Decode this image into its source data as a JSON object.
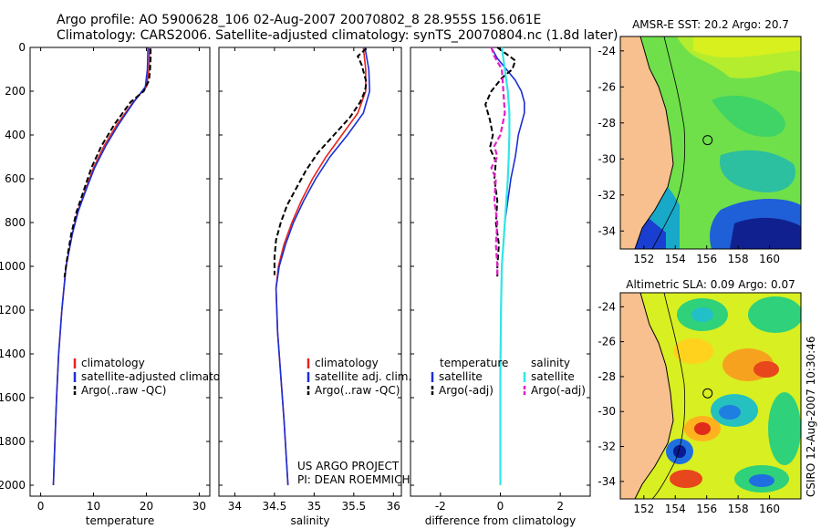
{
  "header": {
    "line1": "Argo profile: AO 5900628_106 02-Aug-2007 20070802_8 28.955S 156.061E",
    "line2": "Climatology: CARS2006. Satellite-adjusted climatology: synTS_20070804.nc (1.8d later)"
  },
  "credits": {
    "project": "US ARGO PROJECT",
    "pi": "PI: DEAN ROEMMICH",
    "stamp": "CSIRO 12-Aug-2007 10:30:46"
  },
  "colors": {
    "climatology": "#e8231c",
    "satellite": "#1b2fd6",
    "argo": "#000000",
    "sal_satellite": "#33e5e5",
    "sal_argo": "#e01fc9",
    "land": "#f7c08e"
  },
  "chart_data": [
    {
      "id": "temperature",
      "type": "line",
      "xlabel": "temperature",
      "ylabel": "",
      "xlim": [
        -2,
        32
      ],
      "ylim": [
        2050,
        0
      ],
      "xticks": [
        "0",
        "10",
        "20",
        "30"
      ],
      "xtick_values": [
        0,
        10,
        20,
        30
      ],
      "yticks": [
        "0",
        "200",
        "400",
        "600",
        "800",
        "1000",
        "1200",
        "1400",
        "1600",
        "1800",
        "2000"
      ],
      "ytick_values": [
        0,
        200,
        400,
        600,
        800,
        1000,
        1200,
        1400,
        1600,
        1800,
        2000
      ],
      "legend": [
        "climatology",
        "satellite-adjusted climatology",
        "Argo(..raw -QC)"
      ],
      "series": [
        {
          "name": "climatology",
          "depth": [
            0,
            100,
            180,
            250,
            350,
            450,
            550,
            650,
            750,
            850,
            1000,
            1200,
            1400,
            1600,
            1800,
            2000
          ],
          "values": [
            20.6,
            20.5,
            20.0,
            17.5,
            14.5,
            12.0,
            10.0,
            8.5,
            7.0,
            6.0,
            4.8,
            4.0,
            3.4,
            3.0,
            2.7,
            2.4
          ]
        },
        {
          "name": "satellite-adjusted climatology",
          "depth": [
            0,
            100,
            180,
            250,
            350,
            450,
            550,
            650,
            750,
            850,
            1000,
            1200,
            1400,
            1600,
            1800,
            2000
          ],
          "values": [
            20.3,
            20.2,
            19.8,
            17.6,
            14.8,
            12.3,
            10.2,
            8.6,
            7.1,
            6.0,
            4.8,
            4.0,
            3.4,
            3.0,
            2.7,
            2.4
          ]
        },
        {
          "name": "Argo(..raw -QC)",
          "depth": [
            5,
            50,
            100,
            150,
            200,
            250,
            350,
            450,
            550,
            650,
            750,
            850,
            950,
            1050
          ],
          "values": [
            20.8,
            20.8,
            20.7,
            20.5,
            19.5,
            17.0,
            14.0,
            11.5,
            9.6,
            8.2,
            6.8,
            5.8,
            5.1,
            4.5
          ]
        }
      ]
    },
    {
      "id": "salinity",
      "type": "line",
      "xlabel": "salinity",
      "ylabel": "",
      "xlim": [
        33.8,
        36.1
      ],
      "ylim": [
        2050,
        0
      ],
      "xticks": [
        "34",
        "34.5",
        "35",
        "35.5",
        "36"
      ],
      "xtick_values": [
        34,
        34.5,
        35,
        35.5,
        36
      ],
      "legend": [
        "climatology",
        "satellite adj. clim.",
        "Argo(..raw -QC)"
      ],
      "series": [
        {
          "name": "climatology",
          "depth": [
            0,
            100,
            200,
            300,
            400,
            500,
            600,
            700,
            800,
            900,
            1000,
            1100,
            1300,
            1500,
            1700,
            2000
          ],
          "values": [
            35.62,
            35.65,
            35.65,
            35.55,
            35.35,
            35.15,
            34.98,
            34.84,
            34.72,
            34.62,
            34.55,
            34.52,
            34.54,
            34.58,
            34.62,
            34.67
          ]
        },
        {
          "name": "satellite adj. clim.",
          "depth": [
            0,
            100,
            200,
            300,
            400,
            500,
            600,
            700,
            800,
            900,
            1000,
            1100,
            1300,
            1500,
            1700,
            2000
          ],
          "values": [
            35.64,
            35.69,
            35.7,
            35.62,
            35.42,
            35.2,
            35.02,
            34.87,
            34.74,
            34.64,
            34.56,
            34.52,
            34.54,
            34.58,
            34.62,
            34.67
          ]
        },
        {
          "name": "Argo(..raw -QC)",
          "depth": [
            5,
            40,
            80,
            120,
            160,
            200,
            250,
            320,
            400,
            480,
            560,
            640,
            720,
            800,
            880,
            960,
            1040
          ],
          "values": [
            35.66,
            35.55,
            35.6,
            35.63,
            35.66,
            35.64,
            35.58,
            35.45,
            35.25,
            35.05,
            34.9,
            34.78,
            34.66,
            34.58,
            34.52,
            34.5,
            34.5
          ]
        }
      ]
    },
    {
      "id": "difference",
      "type": "line",
      "xlabel": "difference from climatology",
      "ylabel": "",
      "xlim": [
        -3,
        3
      ],
      "ylim": [
        2050,
        0
      ],
      "xticks": [
        "-2",
        "0",
        "2"
      ],
      "xtick_values": [
        -2,
        0,
        2
      ],
      "legend_left": [
        "temperature",
        "satellite",
        "Argo(-adj)"
      ],
      "legend_right": [
        "salinity",
        "satellite",
        "Argo(-adj)"
      ],
      "series": [
        {
          "name": "temperature satellite",
          "depth": [
            0,
            50,
            100,
            150,
            200,
            250,
            300,
            350,
            400,
            450,
            500,
            600,
            700,
            800,
            900,
            1000,
            1200,
            1500,
            2000
          ],
          "values": [
            -0.3,
            -0.1,
            0.2,
            0.5,
            0.7,
            0.8,
            0.8,
            0.7,
            0.6,
            0.55,
            0.5,
            0.35,
            0.25,
            0.15,
            0.1,
            0.05,
            0.02,
            0.0,
            0.0
          ]
        },
        {
          "name": "temperature Argo(-adj)",
          "depth": [
            0,
            30,
            60,
            100,
            140,
            200,
            260,
            330,
            400,
            460,
            520,
            600,
            700,
            800,
            900,
            1000,
            1050
          ],
          "values": [
            -0.1,
            0.2,
            0.5,
            0.4,
            0.05,
            -0.3,
            -0.5,
            -0.35,
            -0.25,
            -0.35,
            -0.15,
            -0.2,
            -0.1,
            -0.15,
            -0.05,
            -0.1,
            -0.1
          ]
        },
        {
          "name": "salinity satellite",
          "depth": [
            0,
            100,
            200,
            300,
            400,
            500,
            600,
            700,
            800,
            900,
            1000,
            1200,
            1500,
            2000
          ],
          "values": [
            0.05,
            0.15,
            0.25,
            0.3,
            0.3,
            0.28,
            0.25,
            0.2,
            0.15,
            0.1,
            0.05,
            0.02,
            0.0,
            0.0
          ]
        },
        {
          "name": "salinity Argo(-adj)",
          "depth": [
            0,
            40,
            100,
            200,
            300,
            400,
            450,
            500,
            550,
            600,
            700,
            800,
            900,
            1000,
            1050
          ],
          "values": [
            -0.3,
            -0.2,
            0.05,
            0.1,
            0.15,
            0.0,
            -0.2,
            -0.1,
            -0.3,
            -0.15,
            -0.2,
            -0.1,
            -0.15,
            -0.1,
            -0.1
          ]
        }
      ]
    },
    {
      "id": "sst_map",
      "type": "heatmap",
      "title": "AMSR-E SST: 20.2  Argo: 20.7",
      "xlim": [
        150.5,
        162
      ],
      "ylim": [
        -35,
        -23.2
      ],
      "xticks": [
        "152",
        "154",
        "156",
        "158",
        "160"
      ],
      "xtick_values": [
        152,
        154,
        156,
        158,
        160
      ],
      "yticks": [
        "-24",
        "-26",
        "-28",
        "-30",
        "-32",
        "-34"
      ],
      "ytick_values": [
        -24,
        -26,
        -28,
        -30,
        -32,
        -34
      ],
      "marker": {
        "lon": 156.061,
        "lat": -28.955
      }
    },
    {
      "id": "sla_map",
      "type": "heatmap",
      "title": "Altimetric SLA: 0.09  Argo: 0.07",
      "xlim": [
        150.5,
        162
      ],
      "ylim": [
        -35,
        -23.2
      ],
      "xticks": [
        "152",
        "154",
        "156",
        "158",
        "160"
      ],
      "xtick_values": [
        152,
        154,
        156,
        158,
        160
      ],
      "yticks": [
        "-24",
        "-26",
        "-28",
        "-30",
        "-32",
        "-34"
      ],
      "ytick_values": [
        -24,
        -26,
        -28,
        -30,
        -32,
        -34
      ],
      "marker": {
        "lon": 156.061,
        "lat": -28.955
      }
    }
  ]
}
